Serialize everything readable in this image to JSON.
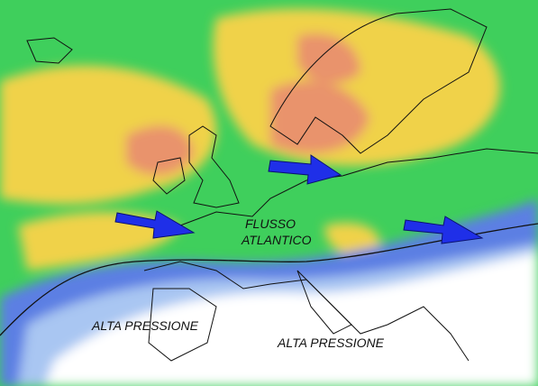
{
  "labels": {
    "flow": [
      "FLUSSO",
      "ATLANTICO"
    ],
    "high_pressure": [
      "ALTA PRESSIONE",
      "ALTA PRESSIONE"
    ]
  }
}
